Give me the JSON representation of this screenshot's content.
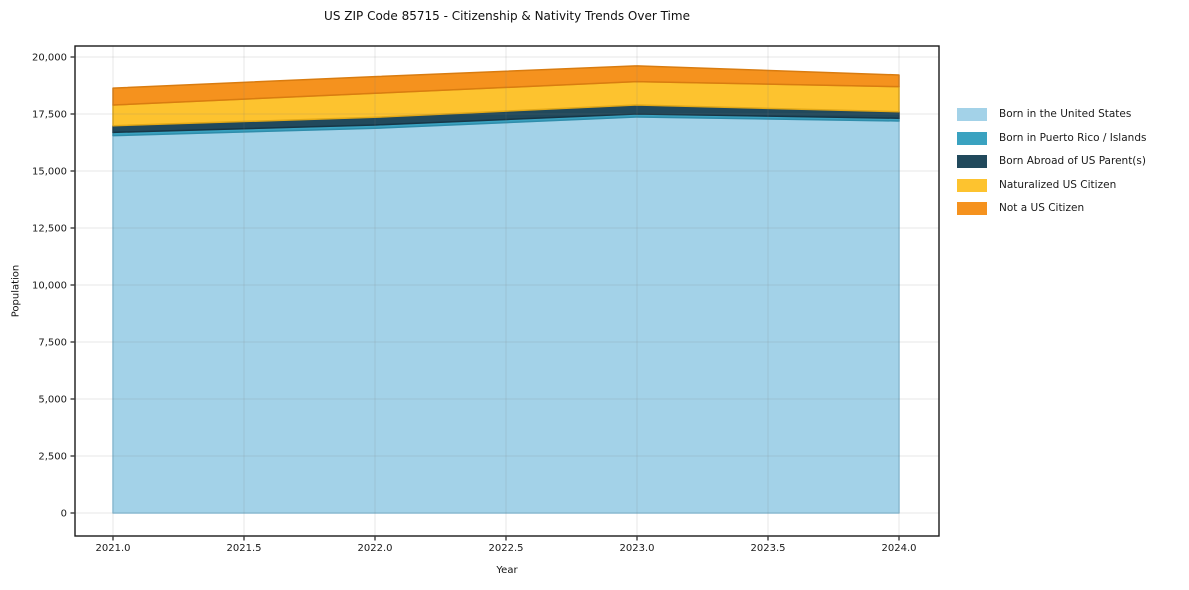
{
  "chart_data": {
    "type": "area",
    "stacked": true,
    "title": "US ZIP Code 85715 - Citizenship & Nativity Trends Over Time",
    "xlabel": "Year",
    "ylabel": "Population",
    "x": [
      2021,
      2022,
      2023,
      2024
    ],
    "series": [
      {
        "name": "Born in the United States",
        "color": "#a3d2e8",
        "edge": "#8cc2dc",
        "values": [
          16550,
          16875,
          17370,
          17195
        ]
      },
      {
        "name": "Born in Puerto Rico / Islands",
        "color": "#3aa2c0",
        "edge": "#2f8dab",
        "values": [
          145,
          145,
          130,
          120
        ]
      },
      {
        "name": "Born Abroad of US Parent(s)",
        "color": "#21495c",
        "edge": "#173646",
        "values": [
          290,
          335,
          395,
          285
        ]
      },
      {
        "name": "Naturalized US Citizen",
        "color": "#fdc32f",
        "edge": "#e2a817",
        "values": [
          910,
          1055,
          1025,
          1100
        ]
      },
      {
        "name": "Not a US Citizen",
        "color": "#f5921e",
        "edge": "#d97c10",
        "values": [
          740,
          730,
          690,
          510
        ]
      }
    ],
    "totals": [
      18635,
      19140,
      19610,
      19210
    ],
    "x_tick_values": [
      2021,
      2021.5,
      2022,
      2022.5,
      2023,
      2023.5,
      2024
    ],
    "x_tick_labels": [
      "2021.0",
      "2021.5",
      "2022.0",
      "2022.5",
      "2023.0",
      "2023.5",
      "2024.0"
    ],
    "y_tick_values": [
      0,
      2500,
      5000,
      7500,
      10000,
      12500,
      15000,
      17500,
      20000
    ],
    "y_tick_labels": [
      "0",
      "2,500",
      "5,000",
      "7,500",
      "10,000",
      "12,500",
      "15,000",
      "17,500",
      "20,000"
    ],
    "ylim": [
      0,
      20000
    ],
    "grid": true,
    "legend_position": "right"
  }
}
